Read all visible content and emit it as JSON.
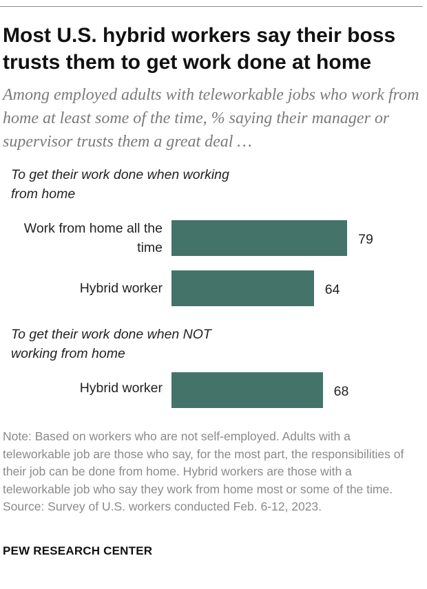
{
  "title": "Most U.S. hybrid workers say their boss trusts them to get work done at home",
  "subtitle": "Among employed adults with teleworkable jobs who work from home at least some of the time, % saying their manager or supervisor trusts them a great deal …",
  "chart_data": {
    "type": "bar",
    "orientation": "horizontal",
    "xlim": [
      0,
      100
    ],
    "bar_color": "#44736a",
    "groups": [
      {
        "label": "To get their work done when working from home",
        "categories": [
          "Work from home all the time",
          "Hybrid worker"
        ],
        "values": [
          79,
          64
        ]
      },
      {
        "label": "To get their work done when NOT working from home",
        "categories": [
          "Hybrid worker"
        ],
        "values": [
          68
        ]
      }
    ]
  },
  "note": "Note: Based on workers who are not self-employed. Adults with a teleworkable job are those who say, for the most part, the responsibilities of their job can be done from home. Hybrid workers are those with a teleworkable job who say they work from home most or some of the time.",
  "source": "Source: Survey of U.S. workers conducted Feb. 6-12, 2023.",
  "brand": "PEW RESEARCH CENTER"
}
